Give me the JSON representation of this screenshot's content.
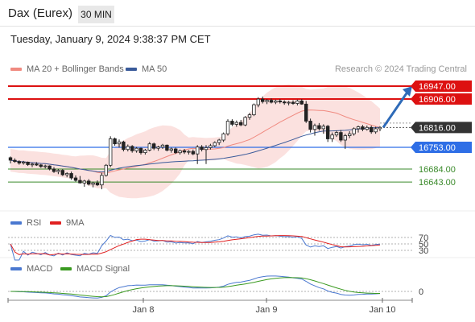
{
  "header": {
    "instrument": "Dax (Eurex)",
    "timeframe": "30 MIN",
    "datetime": "Tuesday, January 9, 2024 9:38:37 PM CET",
    "credit": "Research © 2024 Trading Central"
  },
  "legends": {
    "main": [
      {
        "label": "MA 20 + Bollinger Bands",
        "color": "#f08a80"
      },
      {
        "label": "MA 50",
        "color": "#3a5a9a"
      }
    ],
    "rsi": [
      {
        "label": "RSI",
        "color": "#4a78d0"
      },
      {
        "label": "9MA",
        "color": "#e02020"
      }
    ],
    "macd": [
      {
        "label": "MACD",
        "color": "#4a78d0"
      },
      {
        "label": "MACD Signal",
        "color": "#3a9a20"
      }
    ]
  },
  "chart_data": {
    "type": "candlestick",
    "x_ticks": [
      "Jan 8",
      "Jan 9",
      "Jan 10"
    ],
    "current_price": "16816.00",
    "levels": [
      {
        "value": "16947.00",
        "kind": "resistance",
        "color": "#dd1111"
      },
      {
        "value": "16906.00",
        "kind": "resistance",
        "color": "#dd1111"
      },
      {
        "value": "16816.00",
        "kind": "last",
        "color": "#333333"
      },
      {
        "value": "16753.00",
        "kind": "pivot",
        "color": "#2e6ee6"
      },
      {
        "value": "16684.00",
        "kind": "support",
        "color": "#3a8a2a"
      },
      {
        "value": "16643.00",
        "kind": "support",
        "color": "#3a8a2a"
      }
    ],
    "rsi_levels": [
      "70",
      "50",
      "30"
    ],
    "macd_levels": [
      "0"
    ],
    "candles": [
      [
        16720,
        16724,
        16702,
        16712
      ],
      [
        16712,
        16718,
        16704,
        16708
      ],
      [
        16708,
        16712,
        16698,
        16703
      ],
      [
        16703,
        16710,
        16698,
        16706
      ],
      [
        16706,
        16708,
        16694,
        16698
      ],
      [
        16698,
        16704,
        16690,
        16700
      ],
      [
        16700,
        16706,
        16694,
        16697
      ],
      [
        16697,
        16700,
        16688,
        16692
      ],
      [
        16692,
        16698,
        16686,
        16694
      ],
      [
        16694,
        16696,
        16680,
        16684
      ],
      [
        16684,
        16690,
        16672,
        16676
      ],
      [
        16676,
        16684,
        16668,
        16680
      ],
      [
        16680,
        16684,
        16662,
        16666
      ],
      [
        16666,
        16674,
        16658,
        16670
      ],
      [
        16670,
        16676,
        16650,
        16656
      ],
      [
        16656,
        16664,
        16644,
        16648
      ],
      [
        16648,
        16662,
        16638,
        16640
      ],
      [
        16640,
        16650,
        16628,
        16646
      ],
      [
        16646,
        16652,
        16632,
        16636
      ],
      [
        16636,
        16644,
        16626,
        16640
      ],
      [
        16640,
        16648,
        16630,
        16634
      ],
      [
        16634,
        16672,
        16620,
        16664
      ],
      [
        16664,
        16700,
        16660,
        16696
      ],
      [
        16696,
        16788,
        16690,
        16780
      ],
      [
        16780,
        16784,
        16758,
        16764
      ],
      [
        16764,
        16778,
        16752,
        16770
      ],
      [
        16770,
        16774,
        16740,
        16746
      ],
      [
        16746,
        16762,
        16740,
        16756
      ],
      [
        16756,
        16760,
        16736,
        16742
      ],
      [
        16742,
        16754,
        16736,
        16750
      ],
      [
        16750,
        16752,
        16730,
        16736
      ],
      [
        16736,
        16748,
        16730,
        16744
      ],
      [
        16744,
        16770,
        16740,
        16764
      ],
      [
        16764,
        16768,
        16744,
        16750
      ],
      [
        16750,
        16758,
        16742,
        16754
      ],
      [
        16754,
        16764,
        16748,
        16760
      ],
      [
        16760,
        16762,
        16740,
        16744
      ],
      [
        16744,
        16752,
        16736,
        16748
      ],
      [
        16748,
        16752,
        16732,
        16736
      ],
      [
        16736,
        16746,
        16730,
        16742
      ],
      [
        16742,
        16748,
        16732,
        16738
      ],
      [
        16738,
        16744,
        16730,
        16740
      ],
      [
        16740,
        16746,
        16728,
        16732
      ],
      [
        16732,
        16760,
        16700,
        16754
      ],
      [
        16754,
        16760,
        16740,
        16746
      ],
      [
        16746,
        16760,
        16700,
        16752
      ],
      [
        16752,
        16764,
        16746,
        16758
      ],
      [
        16758,
        16772,
        16754,
        16768
      ],
      [
        16768,
        16780,
        16760,
        16776
      ],
      [
        16776,
        16800,
        16770,
        16796
      ],
      [
        16796,
        16842,
        16790,
        16836
      ],
      [
        16836,
        16842,
        16820,
        16826
      ],
      [
        16826,
        16838,
        16818,
        16832
      ],
      [
        16832,
        16840,
        16820,
        16824
      ],
      [
        16824,
        16852,
        16820,
        16848
      ],
      [
        16848,
        16862,
        16840,
        16856
      ],
      [
        16856,
        16892,
        16852,
        16888
      ],
      [
        16888,
        16912,
        16880,
        16906
      ],
      [
        16906,
        16914,
        16892,
        16898
      ],
      [
        16898,
        16906,
        16890,
        16902
      ],
      [
        16902,
        16908,
        16892,
        16896
      ],
      [
        16896,
        16904,
        16890,
        16900
      ],
      [
        16900,
        16906,
        16892,
        16897
      ],
      [
        16897,
        16902,
        16888,
        16894
      ],
      [
        16894,
        16900,
        16886,
        16896
      ],
      [
        16896,
        16902,
        16888,
        16892
      ],
      [
        16892,
        16904,
        16886,
        16900
      ],
      [
        16900,
        16906,
        16888,
        16890
      ],
      [
        16890,
        16900,
        16830,
        16836
      ],
      [
        16836,
        16844,
        16800,
        16810
      ],
      [
        16810,
        16828,
        16790,
        16822
      ],
      [
        16822,
        16830,
        16806,
        16812
      ],
      [
        16812,
        16826,
        16796,
        16820
      ],
      [
        16820,
        16824,
        16770,
        16780
      ],
      [
        16780,
        16800,
        16770,
        16792
      ],
      [
        16792,
        16806,
        16786,
        16800
      ],
      [
        16800,
        16808,
        16770,
        16776
      ],
      [
        16776,
        16796,
        16748,
        16790
      ],
      [
        16790,
        16804,
        16782,
        16796
      ],
      [
        16796,
        16816,
        16790,
        16812
      ],
      [
        16812,
        16822,
        16800,
        16818
      ],
      [
        16818,
        16824,
        16804,
        16810
      ],
      [
        16810,
        16822,
        16806,
        16816
      ],
      [
        16816,
        16822,
        16796,
        16802
      ],
      [
        16802,
        16818,
        16796,
        16812
      ],
      [
        16812,
        16820,
        16804,
        16816
      ]
    ],
    "projection": [
      16816,
      16947
    ]
  }
}
